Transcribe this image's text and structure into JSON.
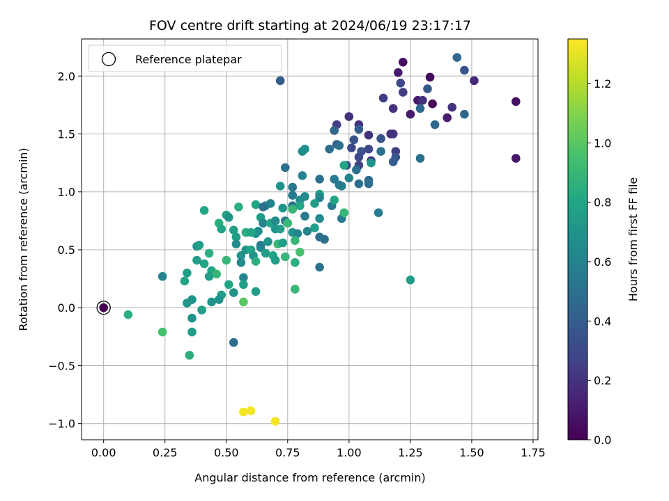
{
  "chart_data": {
    "type": "scatter",
    "title": "FOV centre drift starting at 2024/06/19 23:17:17",
    "xlabel": "Angular distance from reference (arcmin)",
    "ylabel": "Rotation from reference (arcmin)",
    "xlim": [
      -0.09,
      1.77
    ],
    "ylim": [
      -1.14,
      2.32
    ],
    "xticks": [
      0.0,
      0.25,
      0.5,
      0.75,
      1.0,
      1.25,
      1.5,
      1.75
    ],
    "xtick_labels": [
      "0.00",
      "0.25",
      "0.50",
      "0.75",
      "1.00",
      "1.25",
      "1.50",
      "1.75"
    ],
    "yticks": [
      -1.0,
      -0.5,
      0.0,
      0.5,
      1.0,
      1.5,
      2.0
    ],
    "ytick_labels": [
      "−1.0",
      "−0.5",
      "0.0",
      "0.5",
      "1.0",
      "1.5",
      "2.0"
    ],
    "grid": true,
    "legend": {
      "placement": "top-left",
      "entries": [
        "Reference platepar"
      ]
    },
    "reference_point": {
      "x": 0.0,
      "y": 0.0
    },
    "colorbar": {
      "label": "Hours from first FF file",
      "colormap": "viridis",
      "range": [
        0.0,
        1.35
      ],
      "ticks": [
        0.0,
        0.2,
        0.4,
        0.6,
        0.8,
        1.0,
        1.2
      ],
      "tick_labels": [
        "0.0",
        "0.2",
        "0.4",
        "0.6",
        "0.8",
        "1.0",
        "1.2"
      ]
    },
    "points": [
      [
        0.0,
        0.0,
        0.0
      ],
      [
        1.22,
        2.12,
        0.05
      ],
      [
        1.33,
        1.99,
        0.03
      ],
      [
        1.47,
        2.05,
        0.35
      ],
      [
        1.44,
        2.16,
        0.45
      ],
      [
        1.51,
        1.96,
        0.15
      ],
      [
        0.72,
        1.96,
        0.4
      ],
      [
        1.2,
        2.03,
        0.1
      ],
      [
        1.21,
        1.94,
        0.3
      ],
      [
        1.68,
        1.78,
        0.05
      ],
      [
        1.68,
        1.29,
        0.08
      ],
      [
        1.34,
        1.76,
        0.02
      ],
      [
        1.28,
        1.79,
        0.1
      ],
      [
        1.3,
        1.79,
        0.2
      ],
      [
        1.25,
        1.67,
        0.1
      ],
      [
        1.22,
        1.86,
        0.25
      ],
      [
        1.32,
        1.89,
        0.38
      ],
      [
        1.42,
        1.73,
        0.2
      ],
      [
        1.47,
        1.67,
        0.45
      ],
      [
        1.4,
        1.64,
        0.1
      ],
      [
        1.35,
        1.58,
        0.45
      ],
      [
        1.29,
        1.72,
        0.45
      ],
      [
        1.18,
        1.72,
        0.2
      ],
      [
        1.14,
        1.81,
        0.25
      ],
      [
        1.0,
        1.65,
        0.2
      ],
      [
        1.04,
        1.58,
        0.2
      ],
      [
        0.95,
        1.58,
        0.25
      ],
      [
        0.94,
        1.53,
        0.45
      ],
      [
        1.17,
        1.5,
        0.18
      ],
      [
        1.18,
        1.5,
        0.2
      ],
      [
        1.13,
        1.46,
        0.35
      ],
      [
        1.08,
        1.49,
        0.2
      ],
      [
        1.04,
        1.54,
        0.4
      ],
      [
        1.02,
        1.45,
        0.35
      ],
      [
        1.01,
        1.38,
        0.3
      ],
      [
        1.05,
        1.35,
        0.35
      ],
      [
        1.08,
        1.37,
        0.3
      ],
      [
        1.13,
        1.35,
        0.5
      ],
      [
        1.19,
        1.35,
        0.25
      ],
      [
        1.19,
        1.3,
        0.35
      ],
      [
        1.18,
        1.26,
        0.4
      ],
      [
        1.29,
        1.29,
        0.5
      ],
      [
        1.09,
        1.27,
        0.2
      ],
      [
        1.09,
        1.25,
        0.7
      ],
      [
        1.04,
        1.3,
        0.3
      ],
      [
        1.04,
        1.23,
        0.28
      ],
      [
        1.03,
        1.19,
        0.5
      ],
      [
        0.99,
        1.23,
        0.3
      ],
      [
        0.98,
        1.23,
        0.8
      ],
      [
        0.95,
        1.41,
        0.4
      ],
      [
        0.96,
        1.4,
        0.5
      ],
      [
        0.92,
        1.37,
        0.5
      ],
      [
        0.82,
        1.37,
        0.7
      ],
      [
        0.81,
        1.35,
        0.65
      ],
      [
        0.74,
        1.21,
        0.5
      ],
      [
        0.81,
        1.14,
        0.6
      ],
      [
        0.88,
        1.11,
        0.5
      ],
      [
        0.94,
        1.11,
        0.55
      ],
      [
        1.04,
        1.07,
        0.5
      ],
      [
        1.08,
        1.1,
        0.45
      ],
      [
        1.08,
        1.07,
        0.5
      ],
      [
        1.0,
        1.12,
        0.6
      ],
      [
        0.97,
        1.05,
        0.6
      ],
      [
        0.96,
        1.06,
        0.55
      ],
      [
        0.72,
        1.05,
        0.7
      ],
      [
        0.77,
        1.04,
        0.55
      ],
      [
        0.77,
        0.97,
        0.55
      ],
      [
        0.8,
        0.93,
        0.65
      ],
      [
        0.82,
        0.96,
        0.65
      ],
      [
        0.88,
        0.98,
        0.75
      ],
      [
        0.88,
        0.95,
        0.6
      ],
      [
        0.86,
        0.9,
        0.75
      ],
      [
        0.93,
        0.88,
        0.55
      ],
      [
        0.94,
        0.93,
        0.8
      ],
      [
        0.77,
        0.88,
        0.5
      ],
      [
        0.73,
        0.86,
        0.7
      ],
      [
        0.77,
        0.85,
        0.9
      ],
      [
        0.8,
        0.88,
        0.8
      ],
      [
        0.66,
        0.88,
        0.65
      ],
      [
        0.68,
        0.9,
        0.6
      ],
      [
        0.62,
        0.89,
        0.8
      ],
      [
        0.65,
        0.87,
        0.5
      ],
      [
        0.55,
        0.87,
        0.85
      ],
      [
        0.41,
        0.84,
        0.8
      ],
      [
        0.5,
        0.8,
        0.8
      ],
      [
        0.51,
        0.78,
        0.7
      ],
      [
        0.64,
        0.78,
        0.75
      ],
      [
        0.65,
        0.73,
        0.6
      ],
      [
        0.68,
        0.73,
        0.8
      ],
      [
        0.7,
        0.75,
        0.65
      ],
      [
        0.74,
        0.75,
        0.55
      ],
      [
        0.82,
        0.79,
        0.55
      ],
      [
        0.88,
        0.77,
        0.65
      ],
      [
        0.97,
        0.77,
        0.55
      ],
      [
        0.98,
        0.82,
        0.9
      ],
      [
        0.75,
        0.73,
        0.9
      ],
      [
        0.47,
        0.73,
        0.85
      ],
      [
        0.48,
        0.68,
        0.8
      ],
      [
        0.53,
        0.67,
        0.75
      ],
      [
        0.63,
        0.66,
        0.65
      ],
      [
        0.7,
        0.68,
        0.7
      ],
      [
        0.72,
        0.68,
        0.75
      ],
      [
        0.77,
        0.65,
        0.7
      ],
      [
        0.79,
        0.64,
        0.6
      ],
      [
        0.83,
        0.66,
        0.6
      ],
      [
        0.86,
        0.69,
        0.75
      ],
      [
        0.62,
        0.64,
        0.7
      ],
      [
        0.58,
        0.65,
        0.85
      ],
      [
        0.6,
        0.65,
        0.8
      ],
      [
        0.54,
        0.61,
        0.75
      ],
      [
        0.54,
        0.55,
        0.65
      ],
      [
        0.58,
        0.5,
        0.7
      ],
      [
        0.6,
        0.5,
        0.8
      ],
      [
        0.64,
        0.54,
        0.55
      ],
      [
        0.64,
        0.52,
        0.6
      ],
      [
        0.67,
        0.57,
        0.7
      ],
      [
        0.71,
        0.55,
        0.9
      ],
      [
        0.73,
        0.56,
        0.75
      ],
      [
        0.78,
        0.58,
        0.9
      ],
      [
        0.8,
        0.48,
        0.95
      ],
      [
        0.88,
        0.61,
        0.5
      ],
      [
        0.9,
        0.59,
        0.5
      ],
      [
        0.38,
        0.53,
        0.7
      ],
      [
        0.39,
        0.54,
        0.75
      ],
      [
        0.43,
        0.47,
        0.85
      ],
      [
        0.56,
        0.45,
        0.7
      ],
      [
        0.61,
        0.45,
        0.7
      ],
      [
        0.62,
        0.4,
        0.85
      ],
      [
        0.66,
        0.47,
        0.75
      ],
      [
        0.69,
        0.45,
        0.8
      ],
      [
        0.7,
        0.41,
        0.75
      ],
      [
        0.74,
        0.44,
        0.9
      ],
      [
        0.78,
        0.39,
        0.85
      ],
      [
        0.88,
        0.35,
        0.5
      ],
      [
        0.38,
        0.41,
        0.75
      ],
      [
        0.41,
        0.38,
        0.8
      ],
      [
        0.5,
        0.41,
        0.9
      ],
      [
        0.56,
        0.39,
        0.65
      ],
      [
        0.44,
        0.32,
        0.8
      ],
      [
        0.46,
        0.29,
        0.9
      ],
      [
        0.34,
        0.3,
        0.75
      ],
      [
        0.43,
        0.27,
        0.75
      ],
      [
        0.24,
        0.27,
        0.6
      ],
      [
        0.33,
        0.23,
        0.8
      ],
      [
        0.57,
        0.26,
        0.6
      ],
      [
        0.57,
        0.2,
        0.75
      ],
      [
        0.51,
        0.2,
        0.8
      ],
      [
        0.62,
        0.14,
        0.75
      ],
      [
        0.78,
        0.16,
        0.9
      ],
      [
        0.53,
        0.13,
        0.7
      ],
      [
        0.48,
        0.11,
        0.75
      ],
      [
        0.47,
        0.07,
        0.7
      ],
      [
        0.44,
        0.05,
        0.7
      ],
      [
        0.36,
        0.07,
        0.7
      ],
      [
        0.34,
        0.04,
        0.7
      ],
      [
        0.57,
        0.05,
        1.0
      ],
      [
        0.4,
        -0.02,
        0.75
      ],
      [
        0.36,
        -0.09,
        0.7
      ],
      [
        0.1,
        -0.06,
        0.85
      ],
      [
        1.25,
        0.24,
        0.75
      ],
      [
        1.12,
        0.82,
        0.55
      ],
      [
        0.53,
        -0.3,
        0.5
      ],
      [
        0.24,
        -0.21,
        0.95
      ],
      [
        0.36,
        -0.21,
        0.75
      ],
      [
        0.35,
        -0.41,
        0.85
      ],
      [
        0.57,
        -0.9,
        1.33
      ],
      [
        0.6,
        -0.89,
        1.33
      ],
      [
        0.7,
        -0.98,
        1.33
      ]
    ]
  }
}
